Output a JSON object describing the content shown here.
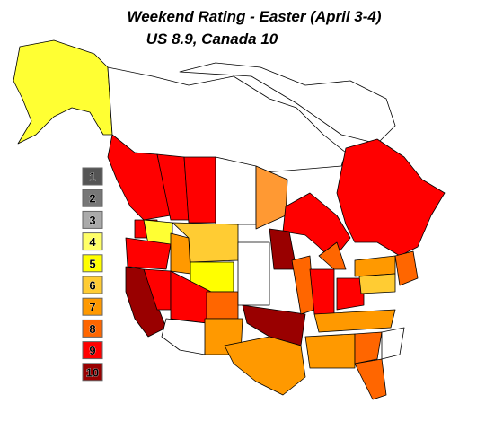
{
  "title": "Weekend Rating - Easter (April 3-4)",
  "subtitle": "US 8.9, Canada 10",
  "legend": [
    {
      "label": "1",
      "color": "#555555"
    },
    {
      "label": "2",
      "color": "#777777"
    },
    {
      "label": "3",
      "color": "#aaaaaa"
    },
    {
      "label": "4",
      "color": "#ffff66"
    },
    {
      "label": "5",
      "color": "#ffff00"
    },
    {
      "label": "6",
      "color": "#ffcc33"
    },
    {
      "label": "7",
      "color": "#ff9900"
    },
    {
      "label": "8",
      "color": "#ff6600"
    },
    {
      "label": "9",
      "color": "#ff0000"
    },
    {
      "label": "10",
      "color": "#990000"
    }
  ]
}
